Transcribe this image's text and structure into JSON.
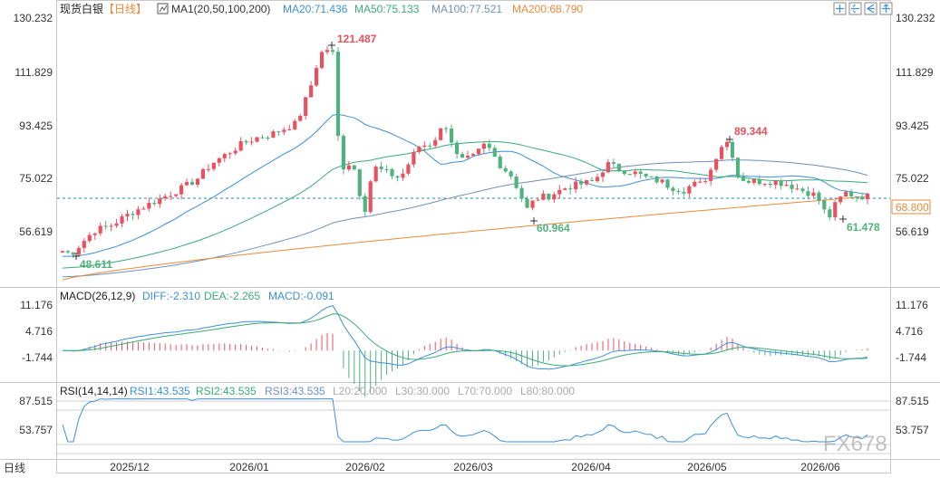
{
  "main_panel": {
    "symbol": "现货白银",
    "period": "【日线】",
    "ma_name": "MA1(20,50,100,200)",
    "ma20": "MA20:71.436",
    "ma50": "MA50:75.133",
    "ma100": "MA100:77.521",
    "ma200": "MA200:68.790",
    "current_price": "68.800"
  },
  "macd_panel": {
    "name": "MACD(26,12,9)",
    "diff": "DIFF:-2.310",
    "dea": "DEA:-2.265",
    "macd": "MACD:-0.091"
  },
  "rsi_panel": {
    "name": "RSI(14,14,14)",
    "rsi1": "RSI1:43.535",
    "rsi2": "RSI2:43.535",
    "rsi3": "RSI3:43.535",
    "l20": "L20:20.000",
    "l30": "L30:30.000",
    "l70": "L70:70.000",
    "l80": "L80:80.000"
  },
  "footer": {
    "period_label": "日线"
  },
  "watermark": "FX678",
  "colors": {
    "up": "#e8515f",
    "down": "#4fb27f",
    "ma20": "#3d8fd8",
    "ma50": "#3aaa7a",
    "ma100": "#6f8fbf",
    "ma200": "#e88a3a",
    "price_line": "#1a8fb0"
  },
  "chart_data": [
    {
      "type": "candlestick",
      "ylim": [
        38.5,
        130.232
      ],
      "y_ticks": [
        "130.232",
        "111.829",
        "93.425",
        "75.022",
        "56.619"
      ],
      "x_ticks": [
        "2025/12",
        "2026/01",
        "2026/02",
        "2026/03",
        "2026/04",
        "2026/05",
        "2026/06"
      ],
      "annotations": [
        {
          "text": "121.487",
          "value": 121.487,
          "kind": "high"
        },
        {
          "text": "48.611",
          "value": 48.611,
          "kind": "low"
        },
        {
          "text": "60.964",
          "value": 60.964,
          "kind": "low"
        },
        {
          "text": "89.344",
          "value": 89.344,
          "kind": "high"
        },
        {
          "text": "61.478",
          "value": 61.478,
          "kind": "low"
        }
      ],
      "current_price": 68.8,
      "series": [
        {
          "name": "MA20",
          "last": 71.436
        },
        {
          "name": "MA50",
          "last": 75.133
        },
        {
          "name": "MA100",
          "last": 77.521
        },
        {
          "name": "MA200",
          "last": 68.79
        }
      ]
    },
    {
      "type": "bar",
      "ylim": [
        -11,
        14
      ],
      "y_ticks": [
        "11.176",
        "4.716",
        "-1.744"
      ],
      "series": [
        {
          "name": "DIFF",
          "last": -2.31
        },
        {
          "name": "DEA",
          "last": -2.265
        },
        {
          "name": "MACD",
          "last": -0.091
        }
      ]
    },
    {
      "type": "line",
      "ylim": [
        40,
        92
      ],
      "y_ticks": [
        "87.515",
        "53.757"
      ],
      "series": [
        {
          "name": "RSI1",
          "last": 43.535
        },
        {
          "name": "RSI2",
          "last": 43.535
        },
        {
          "name": "RSI3",
          "last": 43.535
        }
      ]
    }
  ]
}
